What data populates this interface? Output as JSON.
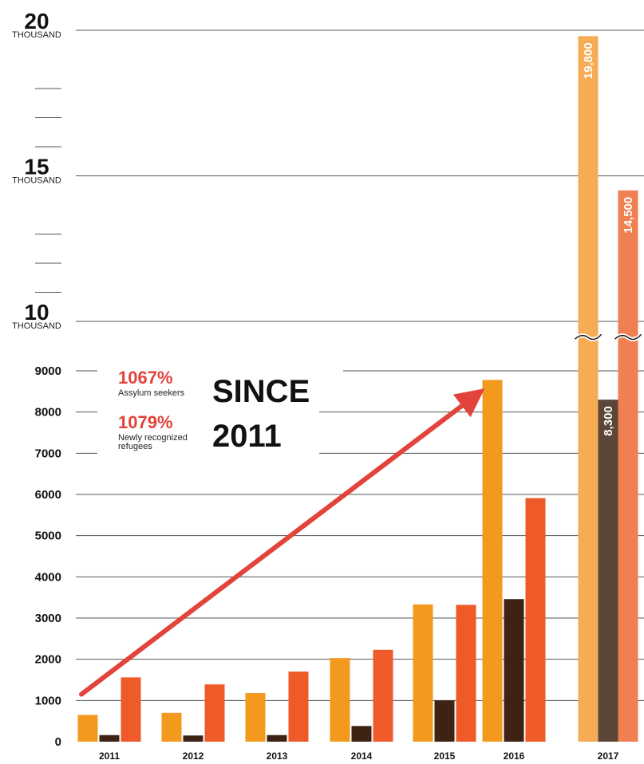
{
  "colors": {
    "asylum": "#f39a1e",
    "asylum_2017": "#f5ac55",
    "refugees": "#3e2314",
    "refugees_2017": "#5b4637",
    "third": "#ee5a28",
    "third_2017": "#f07f51",
    "arrow": "#e2433a",
    "grid": "#555555"
  },
  "annotations": {
    "pct1": "1067%",
    "pct1_label": "Assylum seekers",
    "pct2": "1079%",
    "pct2_label_line1": "Newly recognized",
    "pct2_label_line2": "refugees",
    "headline1": "SINCE",
    "headline2": "2011"
  },
  "chart_data": {
    "type": "bar",
    "title": "",
    "xlabel": "",
    "ylabel": "",
    "ylim": [
      0,
      20000
    ],
    "axis_break": true,
    "categories": [
      "2011",
      "2012",
      "2013",
      "2014",
      "2015",
      "2016",
      "2017"
    ],
    "series": [
      {
        "values": [
          650,
          700,
          1180,
          2030,
          3330,
          8780,
          19800
        ],
        "data_labels": [
          "",
          "",
          "",
          "",
          "",
          "",
          "19,800"
        ]
      },
      {
        "values": [
          160,
          150,
          160,
          380,
          1000,
          3460,
          8300
        ],
        "data_labels": [
          "",
          "",
          "",
          "",
          "",
          "",
          "8,300"
        ]
      },
      {
        "values": [
          1560,
          1390,
          1700,
          2230,
          3320,
          5910,
          14500
        ],
        "data_labels": [
          "",
          "",
          "",
          "",
          "",
          "",
          "14,500"
        ]
      }
    ],
    "y_ticks": [
      {
        "value": 0,
        "label": "0"
      },
      {
        "value": 1000,
        "label": "1000"
      },
      {
        "value": 2000,
        "label": "2000"
      },
      {
        "value": 3000,
        "label": "3000"
      },
      {
        "value": 4000,
        "label": "4000"
      },
      {
        "value": 5000,
        "label": "5000"
      },
      {
        "value": 6000,
        "label": "6000"
      },
      {
        "value": 7000,
        "label": "7000"
      },
      {
        "value": 8000,
        "label": "8000"
      },
      {
        "value": 9000,
        "label": "9000"
      }
    ],
    "y_ticks_upper": [
      {
        "value": 10000,
        "label": "10",
        "unit": "THOUSAND"
      },
      {
        "value": 15000,
        "label": "15",
        "unit": "THOUSAND"
      },
      {
        "value": 20000,
        "label": "20",
        "unit": "THOUSAND"
      }
    ],
    "y_minor_ticks_upper": [
      11000,
      12000,
      13000,
      16000,
      17000,
      18000
    ],
    "trend_arrow": {
      "from": {
        "category": "2011",
        "value": 1150
      },
      "to": {
        "category": "2016",
        "value": 8800
      }
    },
    "grid": true
  }
}
